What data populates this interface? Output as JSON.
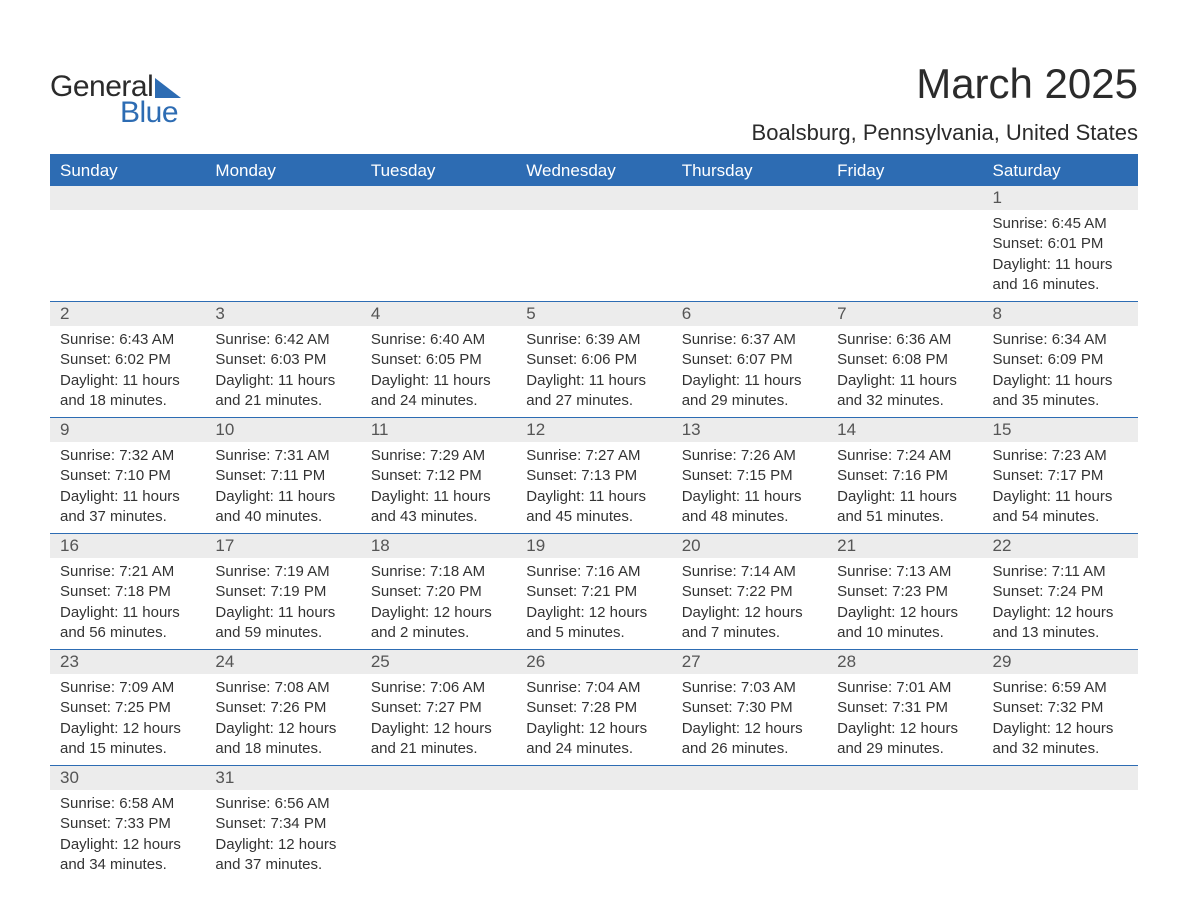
{
  "logo": {
    "text1": "General",
    "text2": "Blue"
  },
  "title": "March 2025",
  "location": "Boalsburg, Pennsylvania, United States",
  "colors": {
    "header_bg": "#2d6cb3",
    "header_text": "#ffffff",
    "daynum_bg": "#ececec",
    "row_border": "#2d6cb3",
    "body_text": "#333333"
  },
  "day_headers": [
    "Sunday",
    "Monday",
    "Tuesday",
    "Wednesday",
    "Thursday",
    "Friday",
    "Saturday"
  ],
  "weeks": [
    [
      {},
      {},
      {},
      {},
      {},
      {},
      {
        "n": "1",
        "sunrise": "6:45 AM",
        "sunset": "6:01 PM",
        "daylight": "11 hours and 16 minutes."
      }
    ],
    [
      {
        "n": "2",
        "sunrise": "6:43 AM",
        "sunset": "6:02 PM",
        "daylight": "11 hours and 18 minutes."
      },
      {
        "n": "3",
        "sunrise": "6:42 AM",
        "sunset": "6:03 PM",
        "daylight": "11 hours and 21 minutes."
      },
      {
        "n": "4",
        "sunrise": "6:40 AM",
        "sunset": "6:05 PM",
        "daylight": "11 hours and 24 minutes."
      },
      {
        "n": "5",
        "sunrise": "6:39 AM",
        "sunset": "6:06 PM",
        "daylight": "11 hours and 27 minutes."
      },
      {
        "n": "6",
        "sunrise": "6:37 AM",
        "sunset": "6:07 PM",
        "daylight": "11 hours and 29 minutes."
      },
      {
        "n": "7",
        "sunrise": "6:36 AM",
        "sunset": "6:08 PM",
        "daylight": "11 hours and 32 minutes."
      },
      {
        "n": "8",
        "sunrise": "6:34 AM",
        "sunset": "6:09 PM",
        "daylight": "11 hours and 35 minutes."
      }
    ],
    [
      {
        "n": "9",
        "sunrise": "7:32 AM",
        "sunset": "7:10 PM",
        "daylight": "11 hours and 37 minutes."
      },
      {
        "n": "10",
        "sunrise": "7:31 AM",
        "sunset": "7:11 PM",
        "daylight": "11 hours and 40 minutes."
      },
      {
        "n": "11",
        "sunrise": "7:29 AM",
        "sunset": "7:12 PM",
        "daylight": "11 hours and 43 minutes."
      },
      {
        "n": "12",
        "sunrise": "7:27 AM",
        "sunset": "7:13 PM",
        "daylight": "11 hours and 45 minutes."
      },
      {
        "n": "13",
        "sunrise": "7:26 AM",
        "sunset": "7:15 PM",
        "daylight": "11 hours and 48 minutes."
      },
      {
        "n": "14",
        "sunrise": "7:24 AM",
        "sunset": "7:16 PM",
        "daylight": "11 hours and 51 minutes."
      },
      {
        "n": "15",
        "sunrise": "7:23 AM",
        "sunset": "7:17 PM",
        "daylight": "11 hours and 54 minutes."
      }
    ],
    [
      {
        "n": "16",
        "sunrise": "7:21 AM",
        "sunset": "7:18 PM",
        "daylight": "11 hours and 56 minutes."
      },
      {
        "n": "17",
        "sunrise": "7:19 AM",
        "sunset": "7:19 PM",
        "daylight": "11 hours and 59 minutes."
      },
      {
        "n": "18",
        "sunrise": "7:18 AM",
        "sunset": "7:20 PM",
        "daylight": "12 hours and 2 minutes."
      },
      {
        "n": "19",
        "sunrise": "7:16 AM",
        "sunset": "7:21 PM",
        "daylight": "12 hours and 5 minutes."
      },
      {
        "n": "20",
        "sunrise": "7:14 AM",
        "sunset": "7:22 PM",
        "daylight": "12 hours and 7 minutes."
      },
      {
        "n": "21",
        "sunrise": "7:13 AM",
        "sunset": "7:23 PM",
        "daylight": "12 hours and 10 minutes."
      },
      {
        "n": "22",
        "sunrise": "7:11 AM",
        "sunset": "7:24 PM",
        "daylight": "12 hours and 13 minutes."
      }
    ],
    [
      {
        "n": "23",
        "sunrise": "7:09 AM",
        "sunset": "7:25 PM",
        "daylight": "12 hours and 15 minutes."
      },
      {
        "n": "24",
        "sunrise": "7:08 AM",
        "sunset": "7:26 PM",
        "daylight": "12 hours and 18 minutes."
      },
      {
        "n": "25",
        "sunrise": "7:06 AM",
        "sunset": "7:27 PM",
        "daylight": "12 hours and 21 minutes."
      },
      {
        "n": "26",
        "sunrise": "7:04 AM",
        "sunset": "7:28 PM",
        "daylight": "12 hours and 24 minutes."
      },
      {
        "n": "27",
        "sunrise": "7:03 AM",
        "sunset": "7:30 PM",
        "daylight": "12 hours and 26 minutes."
      },
      {
        "n": "28",
        "sunrise": "7:01 AM",
        "sunset": "7:31 PM",
        "daylight": "12 hours and 29 minutes."
      },
      {
        "n": "29",
        "sunrise": "6:59 AM",
        "sunset": "7:32 PM",
        "daylight": "12 hours and 32 minutes."
      }
    ],
    [
      {
        "n": "30",
        "sunrise": "6:58 AM",
        "sunset": "7:33 PM",
        "daylight": "12 hours and 34 minutes."
      },
      {
        "n": "31",
        "sunrise": "6:56 AM",
        "sunset": "7:34 PM",
        "daylight": "12 hours and 37 minutes."
      },
      {},
      {},
      {},
      {},
      {}
    ]
  ],
  "labels": {
    "sunrise": "Sunrise: ",
    "sunset": "Sunset: ",
    "daylight": "Daylight: "
  }
}
